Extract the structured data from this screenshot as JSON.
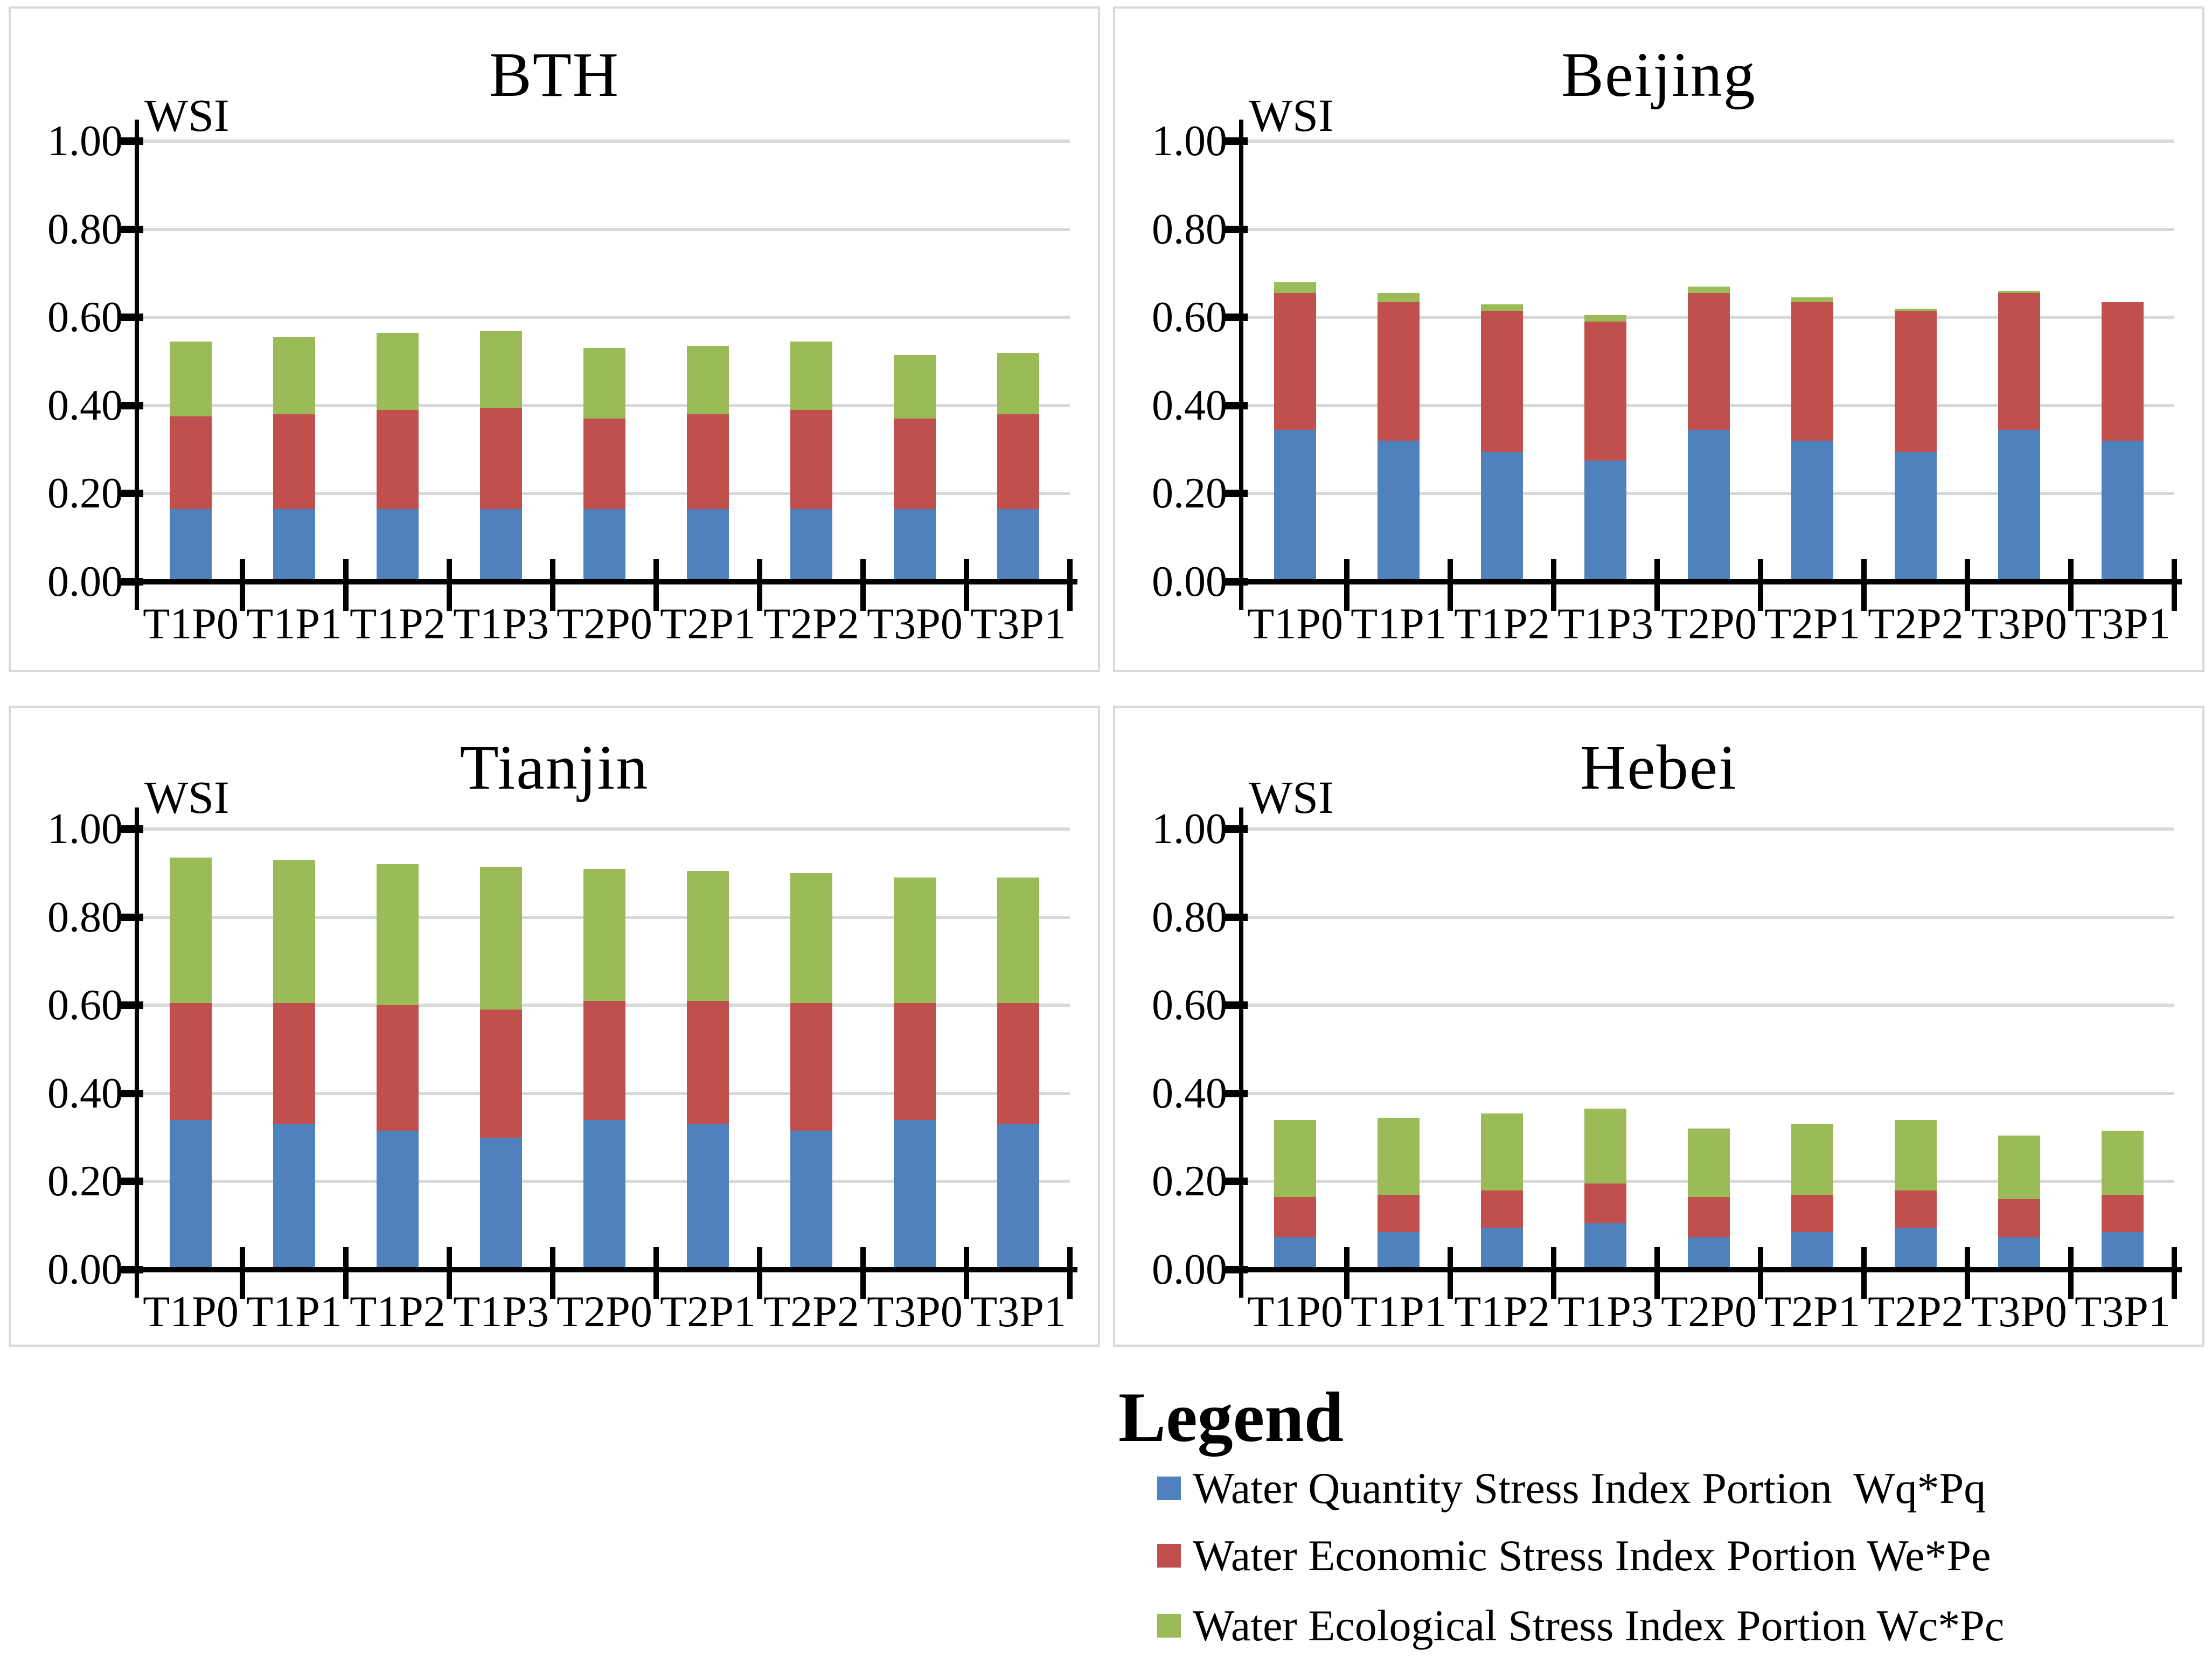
{
  "figure": {
    "y_axis_label": "WSI"
  },
  "colors": {
    "quantity_blue": "#4F81BD",
    "economic_red": "#C0504D",
    "ecological_green": "#9BBB59",
    "gridline": "#D9D9D9",
    "panel_border": "#D9D9D9",
    "axis": "#000000"
  },
  "legend": {
    "title": "Legend",
    "items": [
      {
        "label": "Water Quantity Stress Index Portion  Wq*Pq",
        "color": "#4F81BD"
      },
      {
        "label": "Water Economic Stress Index Portion We*Pe",
        "color": "#C0504D"
      },
      {
        "label": "Water Ecological Stress Index Portion Wc*Pc",
        "color": "#9BBB59"
      }
    ]
  },
  "chart_data": [
    {
      "type": "bar",
      "stacked": true,
      "title": "BTH",
      "y_axis_label": "WSI",
      "ylim": [
        0,
        1
      ],
      "yticks": [
        "0.00",
        "0.20",
        "0.40",
        "0.60",
        "0.80",
        "1.00"
      ],
      "grid": true,
      "categories": [
        "T1P0",
        "T1P1",
        "T1P2",
        "T1P3",
        "T2P0",
        "T2P1",
        "T2P2",
        "T3P0",
        "T3P1"
      ],
      "series": [
        {
          "name": "Water Quantity Stress Index Portion Wq*Pq",
          "color": "#4F81BD",
          "values": [
            0.165,
            0.165,
            0.165,
            0.165,
            0.165,
            0.165,
            0.165,
            0.165,
            0.165
          ]
        },
        {
          "name": "Water Economic Stress Index Portion We*Pe",
          "color": "#C0504D",
          "values": [
            0.21,
            0.215,
            0.225,
            0.23,
            0.205,
            0.215,
            0.225,
            0.205,
            0.215
          ]
        },
        {
          "name": "Water Ecological Stress Index Portion Wc*Pc",
          "color": "#9BBB59",
          "values": [
            0.17,
            0.175,
            0.175,
            0.175,
            0.16,
            0.155,
            0.155,
            0.145,
            0.14
          ]
        }
      ]
    },
    {
      "type": "bar",
      "stacked": true,
      "title": "Beijing",
      "y_axis_label": "WSI",
      "ylim": [
        0,
        1
      ],
      "yticks": [
        "0.00",
        "0.20",
        "0.40",
        "0.60",
        "0.80",
        "1.00"
      ],
      "grid": true,
      "categories": [
        "T1P0",
        "T1P1",
        "T1P2",
        "T1P3",
        "T2P0",
        "T2P1",
        "T2P2",
        "T3P0",
        "T3P1"
      ],
      "series": [
        {
          "name": "Water Quantity Stress Index Portion Wq*Pq",
          "color": "#4F81BD",
          "values": [
            0.345,
            0.32,
            0.295,
            0.275,
            0.345,
            0.32,
            0.295,
            0.345,
            0.32
          ]
        },
        {
          "name": "Water Economic Stress Index Portion We*Pe",
          "color": "#C0504D",
          "values": [
            0.31,
            0.315,
            0.32,
            0.315,
            0.31,
            0.315,
            0.32,
            0.31,
            0.315
          ]
        },
        {
          "name": "Water Ecological Stress Index Portion Wc*Pc",
          "color": "#9BBB59",
          "values": [
            0.025,
            0.02,
            0.015,
            0.015,
            0.015,
            0.01,
            0.005,
            0.005,
            0.0
          ]
        }
      ]
    },
    {
      "type": "bar",
      "stacked": true,
      "title": "Tianjin",
      "y_axis_label": "WSI",
      "ylim": [
        0,
        1
      ],
      "yticks": [
        "0.00",
        "0.20",
        "0.40",
        "0.60",
        "0.80",
        "1.00"
      ],
      "grid": true,
      "categories": [
        "T1P0",
        "T1P1",
        "T1P2",
        "T1P3",
        "T2P0",
        "T2P1",
        "T2P2",
        "T3P0",
        "T3P1"
      ],
      "series": [
        {
          "name": "Water Quantity Stress Index Portion Wq*Pq",
          "color": "#4F81BD",
          "values": [
            0.34,
            0.33,
            0.315,
            0.3,
            0.34,
            0.33,
            0.315,
            0.34,
            0.33
          ]
        },
        {
          "name": "Water Economic Stress Index Portion We*Pe",
          "color": "#C0504D",
          "values": [
            0.265,
            0.275,
            0.285,
            0.29,
            0.27,
            0.28,
            0.29,
            0.265,
            0.275
          ]
        },
        {
          "name": "Water Ecological Stress Index Portion Wc*Pc",
          "color": "#9BBB59",
          "values": [
            0.33,
            0.325,
            0.32,
            0.325,
            0.3,
            0.295,
            0.295,
            0.285,
            0.285
          ]
        }
      ]
    },
    {
      "type": "bar",
      "stacked": true,
      "title": "Hebei",
      "y_axis_label": "WSI",
      "ylim": [
        0,
        1
      ],
      "yticks": [
        "0.00",
        "0.20",
        "0.40",
        "0.60",
        "0.80",
        "1.00"
      ],
      "grid": true,
      "categories": [
        "T1P0",
        "T1P1",
        "T1P2",
        "T1P3",
        "T2P0",
        "T2P1",
        "T2P2",
        "T3P0",
        "T3P1"
      ],
      "series": [
        {
          "name": "Water Quantity Stress Index Portion Wq*Pq",
          "color": "#4F81BD",
          "values": [
            0.075,
            0.085,
            0.095,
            0.105,
            0.075,
            0.085,
            0.095,
            0.075,
            0.085
          ]
        },
        {
          "name": "Water Economic Stress Index Portion We*Pe",
          "color": "#C0504D",
          "values": [
            0.09,
            0.085,
            0.085,
            0.09,
            0.09,
            0.085,
            0.085,
            0.085,
            0.085
          ]
        },
        {
          "name": "Water Ecological Stress Index Portion Wc*Pc",
          "color": "#9BBB59",
          "values": [
            0.175,
            0.175,
            0.175,
            0.17,
            0.155,
            0.16,
            0.16,
            0.145,
            0.145
          ]
        }
      ]
    }
  ]
}
